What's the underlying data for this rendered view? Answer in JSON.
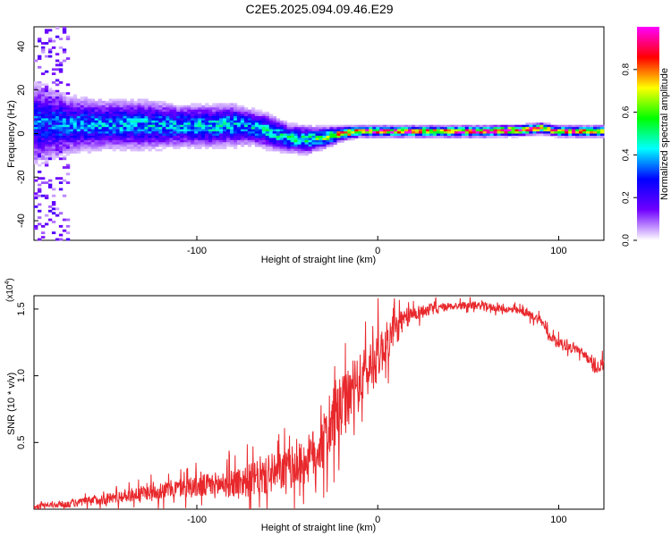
{
  "title": "C2E5.2025.094.09.46.E29",
  "chart_data": [
    {
      "type": "heatmap",
      "xlabel": "Height of straight line (km)",
      "ylabel": "Frequency (Hz)",
      "xlim": [
        -190,
        125
      ],
      "ylim": [
        -49,
        49
      ],
      "x_ticks": [
        -100,
        0,
        100
      ],
      "y_ticks": [
        -40,
        -20,
        0,
        20,
        40
      ],
      "colorbar": {
        "label": "Normalized spectral amplitude",
        "range": [
          0.0,
          1.0
        ],
        "ticks": [
          0.0,
          0.2,
          0.4,
          0.6,
          0.8
        ],
        "tick_labels": [
          "0.0",
          "0.2",
          "0.4",
          "0.6",
          "0.8"
        ],
        "colormap": [
          "#ffffff",
          "#7000ff",
          "#0000ff",
          "#00ffff",
          "#00ff00",
          "#ffff00",
          "#ff0000",
          "#ff00ff"
        ]
      },
      "ridge": {
        "x": [
          -190,
          -170,
          -150,
          -130,
          -110,
          -90,
          -80,
          -70,
          -60,
          -50,
          -40,
          -30,
          -20,
          -10,
          0,
          20,
          40,
          60,
          80,
          90,
          100,
          110,
          125
        ],
        "center_freq": [
          5,
          4,
          4,
          4,
          3.5,
          3.5,
          4,
          3,
          1,
          -2,
          -3,
          -2,
          0,
          1,
          1,
          1,
          1,
          1,
          1.5,
          2.5,
          1,
          1,
          1
        ],
        "spread_hz": [
          12,
          8,
          7,
          7,
          6,
          6,
          6,
          5,
          5,
          4,
          4,
          3,
          2,
          1.5,
          1.5,
          1.5,
          1.5,
          1.5,
          1.5,
          1.5,
          1.5,
          1.5,
          1.5
        ],
        "peak_amplitude": [
          0.35,
          0.38,
          0.4,
          0.42,
          0.42,
          0.45,
          0.45,
          0.45,
          0.45,
          0.5,
          0.5,
          0.6,
          0.8,
          0.95,
          0.95,
          1.0,
          1.0,
          1.0,
          1.0,
          0.95,
          0.9,
          0.9,
          0.9
        ]
      }
    },
    {
      "type": "line",
      "xlabel": "Height of straight line (km)",
      "ylabel": "SNR (10 * v/v)",
      "y_multiplier": "(x10",
      "y_multiplier_exp": "4",
      "y_multiplier_close": ")",
      "xlim": [
        -190,
        125
      ],
      "ylim": [
        0,
        1.6
      ],
      "x_ticks": [
        -100,
        0,
        100
      ],
      "y_ticks": [
        0.5,
        1.0,
        1.5
      ],
      "y_tick_labels": [
        "0.5",
        "1.0",
        "1.5"
      ],
      "series": [
        {
          "color": "#e8282c",
          "x": [
            -190,
            -180,
            -170,
            -160,
            -150,
            -140,
            -130,
            -120,
            -110,
            -100,
            -90,
            -80,
            -70,
            -60,
            -50,
            -40,
            -30,
            -25,
            -20,
            -15,
            -10,
            -5,
            0,
            5,
            10,
            15,
            20,
            30,
            40,
            50,
            60,
            70,
            80,
            90,
            95,
            100,
            105,
            110,
            115,
            120,
            125
          ],
          "y": [
            0.02,
            0.03,
            0.04,
            0.06,
            0.08,
            0.1,
            0.12,
            0.14,
            0.16,
            0.17,
            0.18,
            0.2,
            0.22,
            0.25,
            0.3,
            0.35,
            0.5,
            0.65,
            0.75,
            0.85,
            0.95,
            1.05,
            1.15,
            1.25,
            1.35,
            1.42,
            1.47,
            1.5,
            1.52,
            1.53,
            1.52,
            1.5,
            1.48,
            1.42,
            1.3,
            1.25,
            1.22,
            1.2,
            1.15,
            1.05,
            1.1
          ],
          "noise_amplitude": [
            0.02,
            0.03,
            0.04,
            0.05,
            0.06,
            0.07,
            0.08,
            0.09,
            0.1,
            0.12,
            0.14,
            0.16,
            0.18,
            0.2,
            0.22,
            0.25,
            0.3,
            0.35,
            0.35,
            0.3,
            0.3,
            0.3,
            0.28,
            0.22,
            0.18,
            0.12,
            0.08,
            0.06,
            0.04,
            0.04,
            0.04,
            0.04,
            0.04,
            0.05,
            0.05,
            0.05,
            0.05,
            0.05,
            0.05,
            0.06,
            0.06
          ]
        }
      ]
    }
  ]
}
